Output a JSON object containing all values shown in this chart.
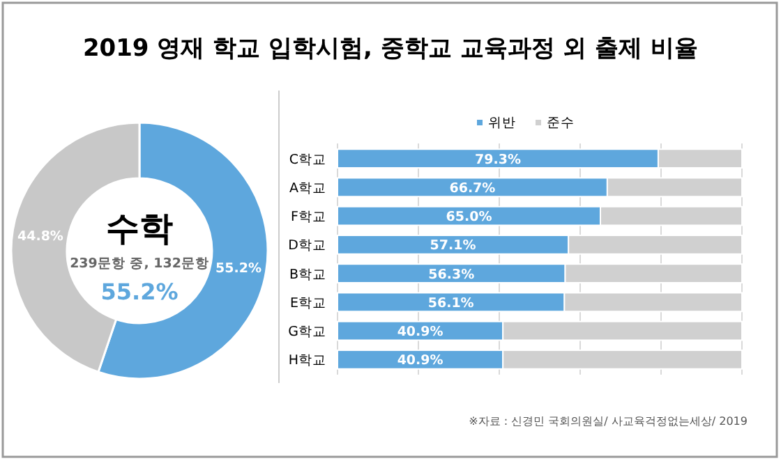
{
  "chart_data": [
    {
      "type": "donut",
      "title": "2019 영재 학교 입학시험, 중학교 교육과정 외 출제 비율",
      "categories": [
        null,
        null
      ],
      "values": [
        55.2,
        44.8
      ],
      "colors": [
        "#5ea7dd",
        "#c8c8c8"
      ],
      "value_labels": [
        "55.2%",
        "44.8%"
      ],
      "annotations": [
        "수학",
        "239문항 중, 132문항",
        "55.2%"
      ]
    },
    {
      "type": "bar",
      "orientation": "horizontal",
      "stacked": true,
      "categories": [
        "C학교",
        "A학교",
        "F학교",
        "D학교",
        "B학교",
        "E학교",
        "G학교",
        "H학교"
      ],
      "series": [
        {
          "name": "위반",
          "color": "#5ea7dd",
          "values": [
            79.3,
            66.7,
            65.0,
            57.1,
            56.3,
            56.1,
            40.9,
            40.9
          ],
          "value_labels": [
            "79.3%",
            "66.7%",
            "65.0%",
            "57.1%",
            "56.3%",
            "56.1%",
            "40.9%",
            "40.9%"
          ]
        },
        {
          "name": "준수",
          "color": "#d0d0d0",
          "values": [
            20.7,
            33.3,
            35.0,
            42.9,
            43.7,
            43.9,
            59.1,
            59.1
          ]
        }
      ],
      "xlim": [
        0,
        100
      ],
      "xticks": [
        {
          "value": 0,
          "label": null
        },
        {
          "value": 20,
          "label": null
        },
        {
          "value": 40,
          "label": null
        },
        {
          "value": 60,
          "label": null
        },
        {
          "value": 80,
          "label": null
        },
        {
          "value": 100,
          "label": null
        }
      ],
      "grid": "x",
      "tick_labels": "y",
      "legend": "top",
      "annotations": [
        "※자료 : 신경민 국회의원실/ 사교육걱정없는세상/ 2019"
      ]
    }
  ]
}
